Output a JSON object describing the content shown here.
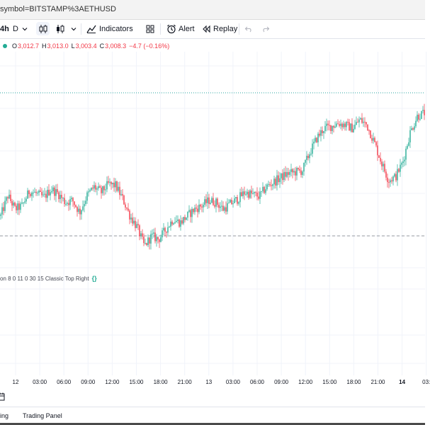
{
  "browser": {
    "url_fragment": "symbol=BITSTAMP%3AETHUSD"
  },
  "toolbar": {
    "interval": "4h",
    "chart_style": "D",
    "indicators_label": "Indicators",
    "alert_label": "Alert",
    "replay_label": "Replay"
  },
  "legend": {
    "o_label": "O",
    "o_value": "3,012.7",
    "h_label": "H",
    "h_value": "3,013.0",
    "l_label": "L",
    "l_value": "3,003.4",
    "c_label": "C",
    "c_value": "3,008.3",
    "change": "−4.7 (−0.16%)"
  },
  "indicator": {
    "legend_text": "on 8 0 11 0 30 15 Classic Top Right",
    "settings_icon": "code-brackets-icon"
  },
  "time_axis": {
    "ticks": [
      "12",
      "03:00",
      "06:00",
      "09:00",
      "12:00",
      "15:00",
      "18:00",
      "21:00",
      "13",
      "03:00",
      "06:00",
      "09:00",
      "12:00",
      "15:00",
      "18:00",
      "21:00",
      "14",
      "03:"
    ],
    "bold_tick": "14"
  },
  "bottom": {
    "tab_partial": "ing",
    "trading_panel": "Trading Panel"
  },
  "colors": {
    "up": "#22ab94",
    "down": "#f23645",
    "grid": "#f0f3fa"
  },
  "chart_data": {
    "type": "candlestick",
    "symbol": "BITSTAMP:ETHUSD",
    "interval_shown": "4h",
    "close_path": [
      2935,
      2965,
      2945,
      2950,
      2972,
      2968,
      2962,
      2975,
      2968,
      2955,
      2958,
      2940,
      2965,
      2978,
      2970,
      2982,
      2980,
      2960,
      2935,
      2918,
      2890,
      2905,
      2900,
      2915,
      2930,
      2925,
      2935,
      2945,
      2950,
      2958,
      2955,
      2945,
      2953,
      2960,
      2970,
      2967,
      2964,
      2978,
      2985,
      2992,
      2998,
      3000,
      3002,
      3028,
      3050,
      3065,
      3068,
      3073,
      3070,
      3065,
      3078,
      3070,
      3045,
      3015,
      2988,
      2993,
      3015,
      3058,
      3083,
      3088
    ]
  }
}
